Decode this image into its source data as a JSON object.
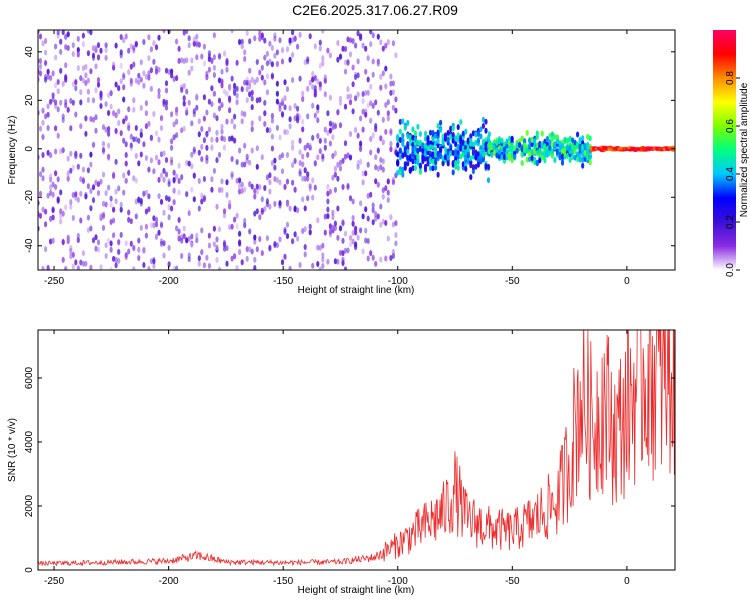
{
  "title": "C2E6.2025.317.06.27.R09",
  "colors": {
    "snr_line": "#ee2a2a",
    "spec_sparse": "#c9a7f2",
    "spec_mid": "#7a3ce6",
    "spec_dense": "#3b10d8"
  },
  "chart_data": [
    {
      "type": "heatmap",
      "xlabel": "Height of straight line (km)",
      "ylabel": "Frequency (Hz)",
      "xlim": [
        -257,
        21
      ],
      "ylim": [
        -50,
        49
      ],
      "x_ticks": [
        -250,
        -200,
        -150,
        -100,
        -50,
        0
      ],
      "y_ticks": [
        -40,
        -20,
        0,
        20,
        40
      ],
      "colorbar": {
        "label": "Normalized spectral amplitude",
        "range": [
          0,
          1
        ],
        "ticks": [
          0.0,
          0.2,
          0.4,
          0.6,
          0.8
        ],
        "tick_labels": [
          "0.0",
          "0.2",
          "0.4",
          "0.6",
          "0.8"
        ],
        "colormap": [
          "#ffffff",
          "#8a2be2",
          "#3b10d8",
          "#0000ff",
          "#00c8ff",
          "#00ff7f",
          "#7fff00",
          "#ffff00",
          "#ff8c00",
          "#ff0000",
          "#ff0066"
        ]
      },
      "regions": [
        {
          "x_range": [
            -257,
            -100
          ],
          "freq_spread": [
            -50,
            49
          ],
          "amplitude": [
            0.05,
            0.2
          ]
        },
        {
          "x_range": [
            -100,
            -60
          ],
          "freq_spread": [
            -15,
            15
          ],
          "amplitude": [
            0.2,
            0.5
          ]
        },
        {
          "x_range": [
            -60,
            -15
          ],
          "freq_spread": [
            -8,
            8
          ],
          "amplitude": [
            0.3,
            0.6
          ]
        },
        {
          "x_range": [
            -15,
            21
          ],
          "freq_spread": [
            -1,
            1
          ],
          "amplitude": [
            0.8,
            1.0
          ]
        }
      ]
    },
    {
      "type": "line",
      "xlabel": "Height of straight line (km)",
      "ylabel": "SNR (10 * v/v)",
      "xlim": [
        -257,
        21
      ],
      "ylim": [
        0,
        7500
      ],
      "x_ticks": [
        -250,
        -200,
        -150,
        -100,
        -50,
        0
      ],
      "y_ticks": [
        0,
        2000,
        4000,
        6000
      ],
      "series": [
        {
          "x": [
            -257,
            -240,
            -220,
            -200,
            -187,
            -175,
            -150,
            -125,
            -110,
            -100,
            -90,
            -80,
            -75,
            -70,
            -60,
            -50,
            -40,
            -30,
            -25,
            -20,
            -15,
            -10,
            -5,
            0,
            5,
            10,
            15,
            21
          ],
          "y": [
            200,
            220,
            250,
            280,
            450,
            250,
            230,
            250,
            400,
            800,
            1300,
            1800,
            2500,
            1600,
            1300,
            1200,
            1600,
            2200,
            3500,
            5500,
            4500,
            5300,
            4200,
            5000,
            6000,
            6300,
            5800,
            6200
          ]
        }
      ]
    }
  ]
}
